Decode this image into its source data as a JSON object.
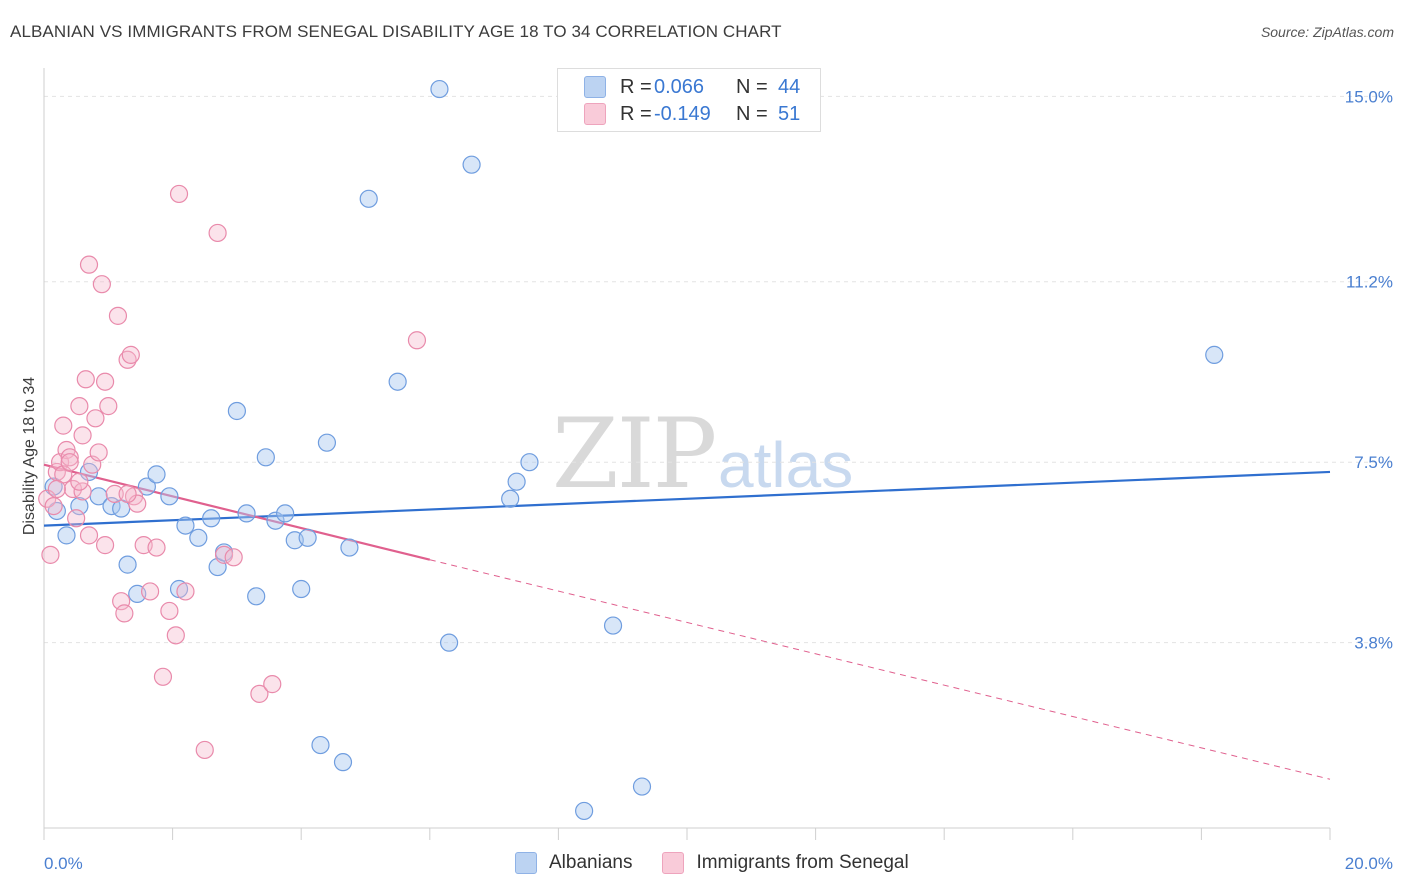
{
  "header": {
    "title": "ALBANIAN VS IMMIGRANTS FROM SENEGAL DISABILITY AGE 18 TO 34 CORRELATION CHART",
    "source": "Source: ZipAtlas.com"
  },
  "watermark": {
    "zip": "ZIP",
    "atlas": "atlas"
  },
  "legend": {
    "rows": [
      {
        "r_label": "R =",
        "r_value": "0.066",
        "n_label": "N =",
        "n_value": "44",
        "color": "#a9c8f0"
      },
      {
        "r_label": "R =",
        "r_value": "-0.149",
        "n_label": "N =",
        "n_value": "51",
        "color": "#f6b8cc"
      }
    ]
  },
  "bottom_legend": {
    "items": [
      {
        "label": "Albanians",
        "color": "#a9c8f0"
      },
      {
        "label": "Immigrants from Senegal",
        "color": "#f6b8cc"
      }
    ]
  },
  "chart_data": {
    "type": "scatter",
    "title": "ALBANIAN VS IMMIGRANTS FROM SENEGAL DISABILITY AGE 18 TO 34 CORRELATION CHART",
    "ylabel": "Disability Age 18 to 34",
    "xlabel": "",
    "xlim": [
      0,
      20
    ],
    "ylim": [
      0,
      15.5
    ],
    "x_tick_labels": [
      "0.0%",
      "20.0%"
    ],
    "y_ticks": [
      {
        "value": 3.8,
        "label": "3.8%"
      },
      {
        "value": 7.5,
        "label": "7.5%"
      },
      {
        "value": 11.2,
        "label": "11.2%"
      },
      {
        "value": 15.0,
        "label": "15.0%"
      }
    ],
    "grid": true,
    "colors": {
      "albanians": "#5b8fd9",
      "senegal": "#e87aa0",
      "albanians_line": "#2f6fcf",
      "senegal_line": "#e0608e"
    },
    "series": [
      {
        "name": "Albanians",
        "points": [
          [
            0.15,
            7.0
          ],
          [
            0.2,
            6.5
          ],
          [
            0.35,
            6.0
          ],
          [
            0.55,
            6.6
          ],
          [
            0.7,
            7.3
          ],
          [
            0.85,
            6.8
          ],
          [
            1.05,
            6.6
          ],
          [
            1.2,
            6.55
          ],
          [
            1.3,
            5.4
          ],
          [
            1.45,
            4.8
          ],
          [
            1.6,
            7.0
          ],
          [
            1.75,
            7.25
          ],
          [
            1.95,
            6.8
          ],
          [
            2.1,
            4.9
          ],
          [
            2.2,
            6.2
          ],
          [
            2.4,
            5.95
          ],
          [
            2.6,
            6.35
          ],
          [
            2.7,
            5.35
          ],
          [
            2.8,
            5.65
          ],
          [
            3.0,
            8.55
          ],
          [
            3.15,
            6.45
          ],
          [
            3.3,
            4.75
          ],
          [
            3.45,
            7.6
          ],
          [
            3.6,
            6.3
          ],
          [
            3.75,
            6.45
          ],
          [
            3.9,
            5.9
          ],
          [
            4.0,
            4.9
          ],
          [
            4.1,
            5.95
          ],
          [
            4.3,
            1.7
          ],
          [
            4.4,
            7.9
          ],
          [
            4.65,
            1.35
          ],
          [
            4.75,
            5.75
          ],
          [
            5.05,
            12.9
          ],
          [
            5.5,
            9.15
          ],
          [
            6.15,
            15.15
          ],
          [
            6.3,
            3.8
          ],
          [
            6.65,
            13.6
          ],
          [
            7.25,
            6.75
          ],
          [
            7.35,
            7.1
          ],
          [
            7.55,
            7.5
          ],
          [
            8.4,
            0.35
          ],
          [
            8.85,
            4.15
          ],
          [
            9.3,
            0.85
          ],
          [
            18.2,
            9.7
          ]
        ]
      },
      {
        "name": "Immigrants from Senegal",
        "points": [
          [
            0.05,
            6.75
          ],
          [
            0.1,
            5.6
          ],
          [
            0.15,
            6.6
          ],
          [
            0.2,
            7.3
          ],
          [
            0.25,
            7.5
          ],
          [
            0.3,
            8.25
          ],
          [
            0.35,
            7.75
          ],
          [
            0.4,
            7.6
          ],
          [
            0.45,
            6.95
          ],
          [
            0.5,
            6.35
          ],
          [
            0.55,
            8.65
          ],
          [
            0.6,
            8.05
          ],
          [
            0.65,
            9.2
          ],
          [
            0.7,
            11.55
          ],
          [
            0.75,
            7.45
          ],
          [
            0.8,
            8.4
          ],
          [
            0.85,
            7.7
          ],
          [
            0.9,
            11.15
          ],
          [
            0.95,
            9.15
          ],
          [
            1.0,
            8.65
          ],
          [
            1.1,
            6.85
          ],
          [
            1.15,
            10.5
          ],
          [
            1.2,
            4.65
          ],
          [
            1.25,
            4.4
          ],
          [
            1.3,
            9.6
          ],
          [
            1.35,
            9.7
          ],
          [
            1.4,
            6.8
          ],
          [
            1.45,
            6.65
          ],
          [
            1.55,
            5.8
          ],
          [
            1.65,
            4.85
          ],
          [
            1.75,
            5.75
          ],
          [
            1.85,
            3.1
          ],
          [
            1.95,
            4.45
          ],
          [
            2.05,
            3.95
          ],
          [
            2.1,
            13.0
          ],
          [
            2.2,
            4.85
          ],
          [
            2.5,
            1.6
          ],
          [
            2.7,
            12.2
          ],
          [
            2.8,
            5.6
          ],
          [
            2.95,
            5.55
          ],
          [
            3.35,
            2.75
          ],
          [
            3.55,
            2.95
          ],
          [
            5.8,
            10.0
          ],
          [
            0.3,
            7.25
          ],
          [
            0.4,
            7.5
          ],
          [
            0.6,
            6.9
          ],
          [
            0.7,
            6.0
          ],
          [
            0.95,
            5.8
          ],
          [
            0.2,
            6.95
          ],
          [
            1.3,
            6.85
          ],
          [
            0.55,
            7.1
          ]
        ]
      }
    ],
    "trend_lines": [
      {
        "series": "Albanians",
        "from": [
          0,
          6.2
        ],
        "to": [
          20,
          7.3
        ],
        "style": "solid"
      },
      {
        "series": "Immigrants from Senegal",
        "from": [
          0,
          7.45
        ],
        "to": [
          6.0,
          5.5
        ],
        "style": "solid"
      },
      {
        "series": "Immigrants from Senegal",
        "from": [
          6.0,
          5.5
        ],
        "to": [
          20,
          1.0
        ],
        "style": "dashed"
      }
    ]
  }
}
